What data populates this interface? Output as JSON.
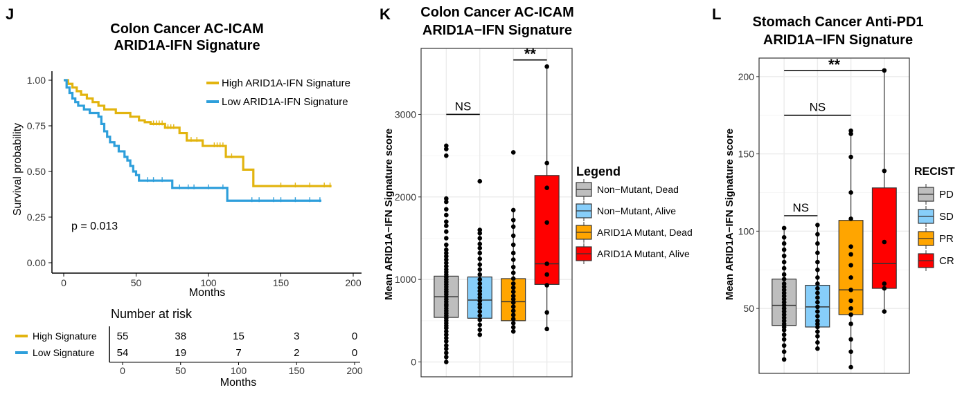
{
  "panels": {
    "J": {
      "letter": "J",
      "title_line1": "Colon Cancer AC-ICAM",
      "title_line2": "ARID1A-IFN Signature",
      "ylabel": "Survival probability",
      "xlabel": "Months",
      "pvalue": "p = 0.013",
      "risk_title": "Number at risk",
      "risk_xlabel": "Months"
    },
    "K": {
      "letter": "K",
      "title_line1": "Colon Cancer AC-ICAM",
      "title_line2": "ARID1A−IFN Signature",
      "ylabel": "Mean ARID1A−IFN Signature score",
      "legend_title": "Legend",
      "sig_ns": "NS",
      "sig_stars": "**"
    },
    "L": {
      "letter": "L",
      "title_line1": "Stomach Cancer Anti-PD1",
      "title_line2": "ARID1A−IFN Signature",
      "ylabel": "Mean ARID1A−IFN Signature score",
      "legend_title": "RECIST",
      "sig_ns_1": "NS",
      "sig_ns_2": "NS",
      "sig_stars": "**"
    }
  },
  "colors": {
    "high": "#E2B40F",
    "low": "#2E9FDB",
    "grey": "#BEBEBE",
    "blue": "#87CEFA",
    "orange": "#FFA500",
    "red": "#FF0000"
  },
  "chart_data": [
    {
      "id": "J",
      "type": "line",
      "title": "Colon Cancer AC-ICAM ARID1A-IFN Signature",
      "xlabel": "Months",
      "ylabel": "Survival probability",
      "xlim": [
        0,
        200
      ],
      "ylim": [
        0,
        1
      ],
      "xticks": [
        0,
        50,
        100,
        150,
        200
      ],
      "yticks": [
        "0.00",
        "0.25",
        "0.50",
        "0.75",
        "1.00"
      ],
      "annotation": "p = 0.013",
      "legend": [
        "High ARID1A-IFN Signature",
        "Low ARID1A-IFN Signature"
      ],
      "series": [
        {
          "name": "High ARID1A-IFN Signature",
          "color_key": "high",
          "steps": [
            [
              0,
              1.0
            ],
            [
              3,
              0.98
            ],
            [
              6,
              0.96
            ],
            [
              9,
              0.94
            ],
            [
              12,
              0.92
            ],
            [
              16,
              0.9
            ],
            [
              20,
              0.88
            ],
            [
              24,
              0.86
            ],
            [
              28,
              0.84
            ],
            [
              36,
              0.82
            ],
            [
              46,
              0.8
            ],
            [
              52,
              0.78
            ],
            [
              56,
              0.77
            ],
            [
              60,
              0.76
            ],
            [
              70,
              0.74
            ],
            [
              80,
              0.71
            ],
            [
              85,
              0.67
            ],
            [
              96,
              0.64
            ],
            [
              112,
              0.58
            ],
            [
              124,
              0.51
            ],
            [
              131,
              0.42
            ],
            [
              185,
              0.42
            ]
          ],
          "censors": [
            [
              62,
              0.76
            ],
            [
              64,
              0.76
            ],
            [
              66,
              0.76
            ],
            [
              68,
              0.76
            ],
            [
              72,
              0.74
            ],
            [
              74,
              0.74
            ],
            [
              76,
              0.74
            ],
            [
              88,
              0.67
            ],
            [
              92,
              0.67
            ],
            [
              104,
              0.64
            ],
            [
              106,
              0.64
            ],
            [
              108,
              0.64
            ],
            [
              110,
              0.64
            ],
            [
              116,
              0.58
            ],
            [
              150,
              0.42
            ],
            [
              160,
              0.42
            ],
            [
              170,
              0.42
            ],
            [
              180,
              0.42
            ],
            [
              184,
              0.42
            ]
          ]
        },
        {
          "name": "Low ARID1A-IFN Signature",
          "color_key": "low",
          "steps": [
            [
              0,
              1.0
            ],
            [
              2,
              0.96
            ],
            [
              4,
              0.93
            ],
            [
              6,
              0.9
            ],
            [
              8,
              0.88
            ],
            [
              10,
              0.86
            ],
            [
              14,
              0.84
            ],
            [
              18,
              0.82
            ],
            [
              24,
              0.8
            ],
            [
              26,
              0.76
            ],
            [
              28,
              0.72
            ],
            [
              30,
              0.69
            ],
            [
              32,
              0.66
            ],
            [
              35,
              0.64
            ],
            [
              38,
              0.61
            ],
            [
              42,
              0.58
            ],
            [
              44,
              0.56
            ],
            [
              46,
              0.53
            ],
            [
              48,
              0.5
            ],
            [
              50,
              0.48
            ],
            [
              52,
              0.45
            ],
            [
              75,
              0.41
            ],
            [
              113,
              0.34
            ],
            [
              178,
              0.34
            ]
          ],
          "censors": [
            [
              58,
              0.45
            ],
            [
              62,
              0.45
            ],
            [
              68,
              0.45
            ],
            [
              80,
              0.41
            ],
            [
              86,
              0.41
            ],
            [
              90,
              0.41
            ],
            [
              100,
              0.41
            ],
            [
              110,
              0.41
            ],
            [
              130,
              0.34
            ],
            [
              135,
              0.34
            ],
            [
              145,
              0.34
            ],
            [
              150,
              0.34
            ],
            [
              160,
              0.34
            ],
            [
              170,
              0.34
            ],
            [
              177,
              0.34
            ]
          ]
        }
      ]
    },
    {
      "id": "J-risk",
      "type": "table",
      "title": "Number at risk",
      "xlabel": "Months",
      "xticks": [
        0,
        50,
        100,
        150,
        200
      ],
      "rows": [
        {
          "label": "High Signature",
          "color_key": "high",
          "values": [
            55,
            38,
            15,
            3,
            0
          ]
        },
        {
          "label": "Low Signature",
          "color_key": "low",
          "values": [
            54,
            19,
            7,
            2,
            0
          ]
        }
      ]
    },
    {
      "id": "K",
      "type": "box",
      "title": "Colon Cancer AC-ICAM ARID1A−IFN Signature",
      "ylabel": "Mean ARID1A−IFN Signature score",
      "ylim": [
        -180,
        3800
      ],
      "yticks": [
        0,
        1000,
        2000,
        3000
      ],
      "legend_title": "Legend",
      "groups": [
        {
          "name": "Non−Mutant, Dead",
          "color_key": "grey",
          "q1": 540,
          "median": 790,
          "q3": 1040,
          "whisker_low": 0,
          "whisker_high": 1420,
          "points": [
            0,
            60,
            110,
            160,
            200,
            250,
            290,
            330,
            370,
            410,
            440,
            470,
            500,
            530,
            560,
            590,
            620,
            650,
            680,
            700,
            730,
            760,
            790,
            820,
            850,
            880,
            910,
            940,
            970,
            1000,
            1030,
            1060,
            1090,
            1120,
            1160,
            1200,
            1240,
            1280,
            1320,
            1360,
            1420,
            1500,
            1580,
            1650,
            1700,
            1780,
            1850,
            1940,
            1980,
            2500,
            2580,
            2620
          ]
        },
        {
          "name": "Non−Mutant, Alive",
          "color_key": "blue",
          "q1": 530,
          "median": 750,
          "q3": 1030,
          "whisker_low": 330,
          "whisker_high": 1600,
          "points": [
            330,
            390,
            450,
            510,
            560,
            610,
            660,
            700,
            740,
            780,
            820,
            860,
            900,
            950,
            1000,
            1060,
            1120,
            1180,
            1250,
            1320,
            1380,
            1430,
            1500,
            1560,
            1600,
            2190
          ]
        },
        {
          "name": "ARID1A Mutant, Dead",
          "color_key": "orange",
          "q1": 500,
          "median": 730,
          "q3": 1010,
          "whisker_low": 370,
          "whisker_high": 1840,
          "points": [
            370,
            420,
            470,
            520,
            570,
            620,
            670,
            720,
            760,
            800,
            850,
            900,
            950,
            1010,
            1080,
            1150,
            1240,
            1320,
            1420,
            1530,
            1640,
            1720,
            1840,
            2540
          ]
        },
        {
          "name": "ARID1A Mutant, Alive",
          "color_key": "red",
          "q1": 940,
          "median": 1190,
          "q3": 2260,
          "whisker_low": 400,
          "whisker_high": 3580,
          "points": [
            400,
            600,
            930,
            1060,
            1190,
            1690,
            2110,
            2410,
            3580
          ]
        }
      ],
      "comparisons": [
        {
          "groups": [
            1,
            2
          ],
          "label": "NS",
          "y": 3000
        },
        {
          "groups": [
            3,
            4
          ],
          "label": "**",
          "y": 3660
        }
      ]
    },
    {
      "id": "L",
      "type": "box",
      "title": "Stomach Cancer Anti-PD1 ARID1A−IFN Signature",
      "ylabel": "Mean ARID1A−IFN Signature score",
      "ylim": [
        8,
        212
      ],
      "yticks": [
        50,
        100,
        150,
        200
      ],
      "legend_title": "RECIST",
      "groups": [
        {
          "name": "PD",
          "color_key": "grey",
          "q1": 39,
          "median": 52,
          "q3": 69,
          "whisker_low": 17,
          "whisker_high": 102,
          "points": [
            17,
            22,
            26,
            30,
            33,
            36,
            38,
            40,
            42,
            44,
            46,
            48,
            50,
            52,
            54,
            56,
            58,
            60,
            62,
            64,
            66,
            69,
            72,
            76,
            80,
            84,
            88,
            92,
            96,
            102
          ]
        },
        {
          "name": "SD",
          "color_key": "blue",
          "q1": 38,
          "median": 51,
          "q3": 65,
          "whisker_low": 24,
          "whisker_high": 104,
          "points": [
            24,
            28,
            32,
            35,
            38,
            40,
            42,
            45,
            48,
            51,
            54,
            57,
            60,
            63,
            66,
            70,
            75,
            80,
            86,
            92,
            98,
            104
          ]
        },
        {
          "name": "PR",
          "color_key": "orange",
          "q1": 46,
          "median": 62,
          "q3": 107,
          "whisker_low": 12,
          "whisker_high": 165,
          "points": [
            12,
            22,
            30,
            40,
            46,
            50,
            55,
            62,
            70,
            78,
            85,
            90,
            108,
            125,
            148,
            163,
            165
          ]
        },
        {
          "name": "CR",
          "color_key": "red",
          "q1": 63,
          "median": 79,
          "q3": 128,
          "whisker_low": 48,
          "whisker_high": 204,
          "points": [
            48,
            63,
            66,
            93,
            139,
            204
          ]
        }
      ],
      "comparisons": [
        {
          "groups": [
            1,
            2
          ],
          "label": "NS",
          "y": 110
        },
        {
          "groups": [
            1,
            3
          ],
          "label": "NS",
          "y": 175
        },
        {
          "groups": [
            1,
            4
          ],
          "label": "**",
          "y": 204
        }
      ]
    }
  ]
}
